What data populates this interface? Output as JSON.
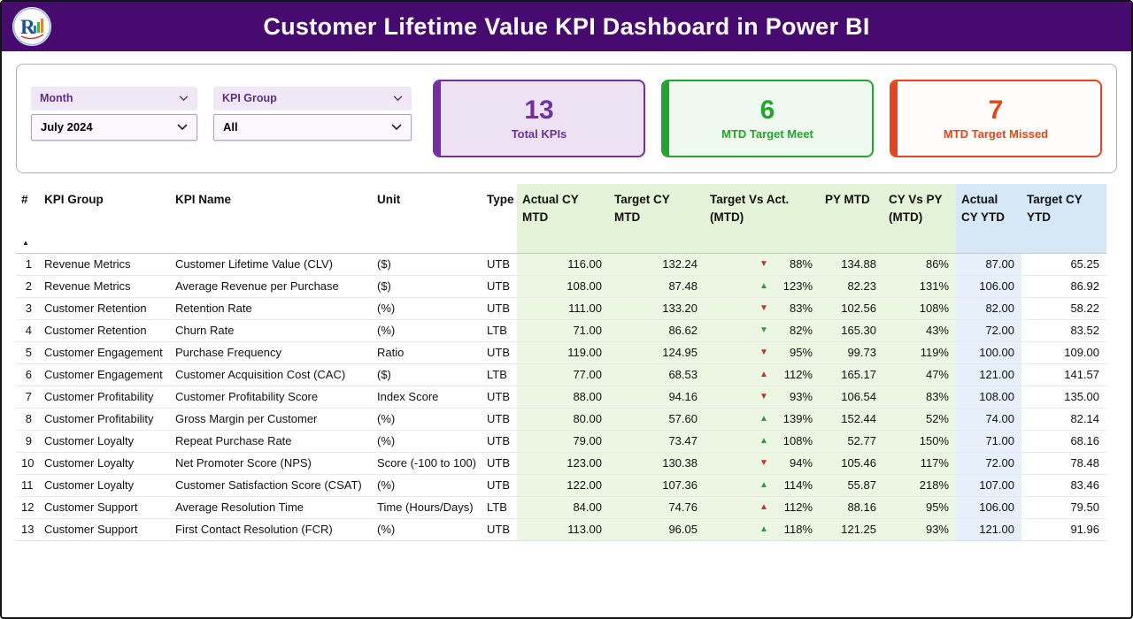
{
  "header": {
    "title": "Customer Lifetime Value KPI Dashboard in Power BI"
  },
  "filters": {
    "month": {
      "label": "Month",
      "value": "July 2024"
    },
    "kpi_group": {
      "label": "KPI Group",
      "value": "All"
    }
  },
  "kpi_cards": [
    {
      "value": "13",
      "label": "Total KPIs",
      "accent": "#7030a0",
      "bg": "#ece2f4"
    },
    {
      "value": "6",
      "label": "MTD Target Meet",
      "accent": "#22a52c",
      "bg": "#f0f9ef"
    },
    {
      "value": "7",
      "label": "MTD Target Missed",
      "accent": "#e2461a",
      "bg": "#fffcfb"
    }
  ],
  "legend": {
    "arrow_up_glyph": "▲",
    "arrow_down_glyph": "▼",
    "meet_color": "#2e9e3c",
    "missed_color": "#cc2f25"
  },
  "table": {
    "columns": [
      "#",
      "KPI Group",
      "KPI Name",
      "Unit",
      "Type",
      "Actual CY MTD",
      "Target CY MTD",
      "Target Vs Act. (MTD)",
      "PY MTD",
      "CY Vs PY (MTD)",
      "Actual CY YTD",
      "Target CY YTD"
    ],
    "sort": {
      "column_index": 0,
      "direction": "ascending",
      "glyph": "▲"
    },
    "rows": [
      {
        "num": "1",
        "kpi_group": "Revenue Metrics",
        "kpi_name": "Customer Lifetime Value (CLV)",
        "unit": "($)",
        "type": "UTB",
        "actual_cy_mtd": "116.00",
        "target_cy_mtd": "132.24",
        "target_vs_actual": {
          "direction": "down",
          "status": "missed",
          "value": "88%"
        },
        "py_mtd": "134.88",
        "cy_vs_py_mtd": "86%",
        "actual_cy_ytd": "87.00",
        "target_cy_ytd": "65.25"
      },
      {
        "num": "2",
        "kpi_group": "Revenue Metrics",
        "kpi_name": "Average Revenue per Purchase",
        "unit": "($)",
        "type": "UTB",
        "actual_cy_mtd": "108.00",
        "target_cy_mtd": "87.48",
        "target_vs_actual": {
          "direction": "up",
          "status": "meet",
          "value": "123%"
        },
        "py_mtd": "82.23",
        "cy_vs_py_mtd": "131%",
        "actual_cy_ytd": "106.00",
        "target_cy_ytd": "86.92"
      },
      {
        "num": "3",
        "kpi_group": "Customer Retention",
        "kpi_name": "Retention Rate",
        "unit": "(%)",
        "type": "UTB",
        "actual_cy_mtd": "111.00",
        "target_cy_mtd": "133.20",
        "target_vs_actual": {
          "direction": "down",
          "status": "missed",
          "value": "83%"
        },
        "py_mtd": "102.56",
        "cy_vs_py_mtd": "108%",
        "actual_cy_ytd": "82.00",
        "target_cy_ytd": "58.22"
      },
      {
        "num": "4",
        "kpi_group": "Customer Retention",
        "kpi_name": "Churn Rate",
        "unit": "(%)",
        "type": "LTB",
        "actual_cy_mtd": "71.00",
        "target_cy_mtd": "86.62",
        "target_vs_actual": {
          "direction": "down",
          "status": "meet",
          "value": "82%"
        },
        "py_mtd": "165.30",
        "cy_vs_py_mtd": "43%",
        "actual_cy_ytd": "72.00",
        "target_cy_ytd": "83.52"
      },
      {
        "num": "5",
        "kpi_group": "Customer Engagement",
        "kpi_name": "Purchase Frequency",
        "unit": "Ratio",
        "type": "UTB",
        "actual_cy_mtd": "119.00",
        "target_cy_mtd": "124.95",
        "target_vs_actual": {
          "direction": "down",
          "status": "missed",
          "value": "95%"
        },
        "py_mtd": "99.73",
        "cy_vs_py_mtd": "119%",
        "actual_cy_ytd": "100.00",
        "target_cy_ytd": "109.00"
      },
      {
        "num": "6",
        "kpi_group": "Customer Engagement",
        "kpi_name": "Customer Acquisition Cost (CAC)",
        "unit": "($)",
        "type": "LTB",
        "actual_cy_mtd": "77.00",
        "target_cy_mtd": "68.53",
        "target_vs_actual": {
          "direction": "up",
          "status": "missed",
          "value": "112%"
        },
        "py_mtd": "165.17",
        "cy_vs_py_mtd": "47%",
        "actual_cy_ytd": "121.00",
        "target_cy_ytd": "141.57"
      },
      {
        "num": "7",
        "kpi_group": "Customer Profitability",
        "kpi_name": "Customer Profitability Score",
        "unit": "Index Score",
        "type": "UTB",
        "actual_cy_mtd": "88.00",
        "target_cy_mtd": "94.16",
        "target_vs_actual": {
          "direction": "down",
          "status": "missed",
          "value": "93%"
        },
        "py_mtd": "106.54",
        "cy_vs_py_mtd": "83%",
        "actual_cy_ytd": "108.00",
        "target_cy_ytd": "135.00"
      },
      {
        "num": "8",
        "kpi_group": "Customer Profitability",
        "kpi_name": "Gross Margin per Customer",
        "unit": "(%)",
        "type": "UTB",
        "actual_cy_mtd": "80.00",
        "target_cy_mtd": "57.60",
        "target_vs_actual": {
          "direction": "up",
          "status": "meet",
          "value": "139%"
        },
        "py_mtd": "152.44",
        "cy_vs_py_mtd": "52%",
        "actual_cy_ytd": "74.00",
        "target_cy_ytd": "82.14"
      },
      {
        "num": "9",
        "kpi_group": "Customer Loyalty",
        "kpi_name": "Repeat Purchase Rate",
        "unit": "(%)",
        "type": "UTB",
        "actual_cy_mtd": "79.00",
        "target_cy_mtd": "73.47",
        "target_vs_actual": {
          "direction": "up",
          "status": "meet",
          "value": "108%"
        },
        "py_mtd": "52.77",
        "cy_vs_py_mtd": "150%",
        "actual_cy_ytd": "71.00",
        "target_cy_ytd": "68.16"
      },
      {
        "num": "10",
        "kpi_group": "Customer Loyalty",
        "kpi_name": "Net Promoter Score (NPS)",
        "unit": "Score (-100 to 100)",
        "type": "UTB",
        "actual_cy_mtd": "123.00",
        "target_cy_mtd": "130.38",
        "target_vs_actual": {
          "direction": "down",
          "status": "missed",
          "value": "94%"
        },
        "py_mtd": "105.46",
        "cy_vs_py_mtd": "117%",
        "actual_cy_ytd": "72.00",
        "target_cy_ytd": "78.48"
      },
      {
        "num": "11",
        "kpi_group": "Customer Loyalty",
        "kpi_name": "Customer Satisfaction Score (CSAT)",
        "unit": "(%)",
        "type": "UTB",
        "actual_cy_mtd": "122.00",
        "target_cy_mtd": "107.36",
        "target_vs_actual": {
          "direction": "up",
          "status": "meet",
          "value": "114%"
        },
        "py_mtd": "55.87",
        "cy_vs_py_mtd": "218%",
        "actual_cy_ytd": "107.00",
        "target_cy_ytd": "83.46"
      },
      {
        "num": "12",
        "kpi_group": "Customer Support",
        "kpi_name": "Average Resolution Time",
        "unit": "Time (Hours/Days)",
        "type": "LTB",
        "actual_cy_mtd": "84.00",
        "target_cy_mtd": "74.76",
        "target_vs_actual": {
          "direction": "up",
          "status": "missed",
          "value": "112%"
        },
        "py_mtd": "88.16",
        "cy_vs_py_mtd": "95%",
        "actual_cy_ytd": "106.00",
        "target_cy_ytd": "79.50"
      },
      {
        "num": "13",
        "kpi_group": "Customer Support",
        "kpi_name": "First Contact Resolution (FCR)",
        "unit": "(%)",
        "type": "UTB",
        "actual_cy_mtd": "113.00",
        "target_cy_mtd": "96.05",
        "target_vs_actual": {
          "direction": "up",
          "status": "meet",
          "value": "118%"
        },
        "py_mtd": "121.25",
        "cy_vs_py_mtd": "93%",
        "actual_cy_ytd": "121.00",
        "target_cy_ytd": "91.96"
      }
    ]
  }
}
